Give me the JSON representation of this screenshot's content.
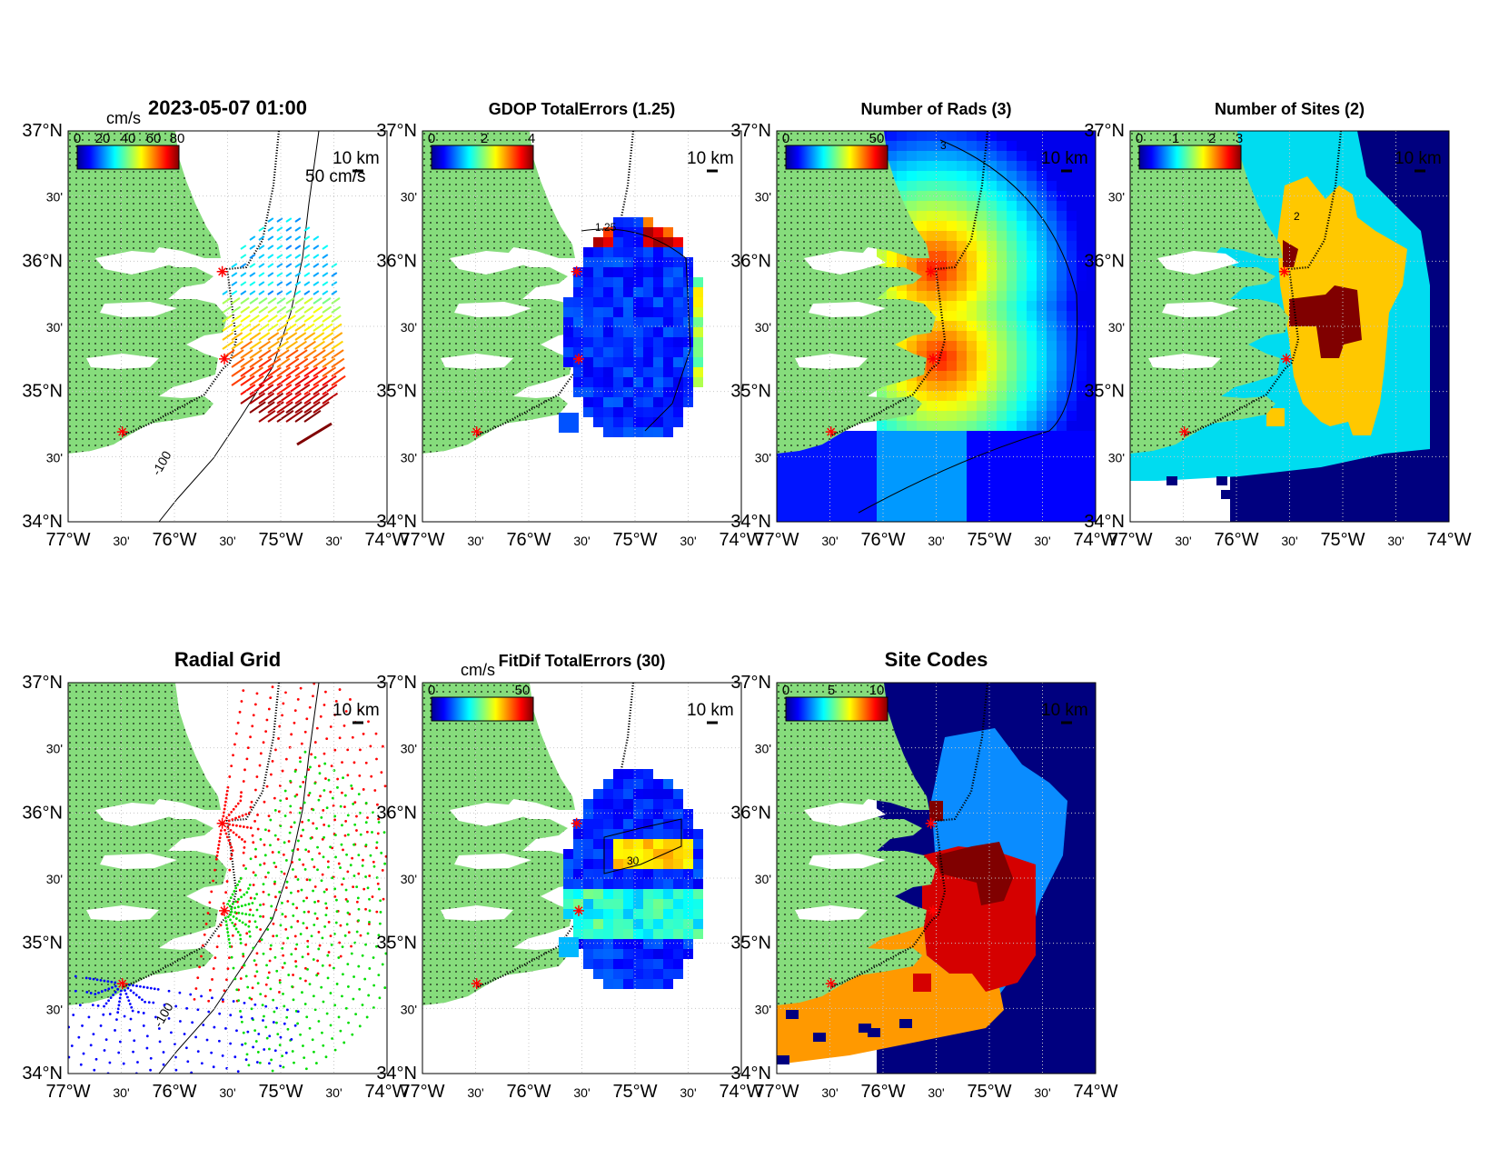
{
  "colors": {
    "land": "#86dc7c",
    "land_dots": "#000000",
    "site_marker": "#ff0000",
    "grid_dashed": "#bbbbbb",
    "navy": "#00007f",
    "blue": "#0a2be6",
    "cyan": "#00dcf0",
    "gold": "#ffc800",
    "darkred": "#800000",
    "red": "#d50000",
    "orange": "#ff9900",
    "lightblue": "#0a8cff",
    "rad_red": "#ff0000",
    "rad_green": "#00dd00",
    "rad_blue": "#0000ff"
  },
  "axes": {
    "lon_labels": [
      "77°W",
      "30'",
      "76°W",
      "30'",
      "75°W",
      "30'",
      "74°W"
    ],
    "lat_labels": [
      "37°N",
      "30'",
      "36°N",
      "30'",
      "35°N",
      "30'",
      "34°N"
    ],
    "scale_bar": "10 km",
    "isobath": "-100"
  },
  "panels": [
    {
      "id": "p1",
      "title": "2023-05-07 01:00",
      "cbar_unit": "cm/s",
      "cbar_ticks": [
        "0",
        "20",
        "40",
        "60",
        "80"
      ],
      "vector_scale": "50 cm/s"
    },
    {
      "id": "p2",
      "title": "GDOP TotalErrors (1.25)",
      "cbar_ticks": [
        "0",
        "2",
        "4"
      ],
      "contour_label": "1.25"
    },
    {
      "id": "p3",
      "title": "Number of Rads (3)",
      "cbar_ticks": [
        "0",
        "50"
      ],
      "contour_label": "3"
    },
    {
      "id": "p4",
      "title": "Number of Sites (2)",
      "cbar_ticks": [
        "0",
        "1",
        "2",
        "3"
      ],
      "contour_label": "2"
    },
    {
      "id": "p5",
      "title": "Radial Grid"
    },
    {
      "id": "p6",
      "title": "FitDif TotalErrors (30)",
      "cbar_unit": "cm/s",
      "cbar_ticks": [
        "0",
        "50"
      ],
      "contour_label": "30"
    },
    {
      "id": "p7",
      "title": "Site Codes",
      "cbar_ticks": [
        "0",
        "5",
        "10"
      ]
    }
  ],
  "chart_data": [
    {
      "type": "heatmap",
      "title": "2023-05-07 01:00",
      "units": "cm/s",
      "layer": "total current vectors",
      "lon_range": [
        -77,
        -74
      ],
      "lat_range": [
        34,
        37
      ]
    },
    {
      "type": "heatmap",
      "title": "GDOP TotalErrors (1.25)",
      "lon_range": [
        -77,
        -74
      ],
      "lat_range": [
        34,
        37
      ],
      "color_range": [
        0,
        5
      ]
    },
    {
      "type": "heatmap",
      "title": "Number of Rads (3)",
      "lon_range": [
        -77,
        -74
      ],
      "lat_range": [
        34,
        37
      ],
      "color_range": [
        0,
        60
      ]
    },
    {
      "type": "heatmap",
      "title": "Number of Sites (2)",
      "lon_range": [
        -77,
        -74
      ],
      "lat_range": [
        34,
        37
      ],
      "color_range": [
        0,
        3
      ]
    },
    {
      "type": "scatter",
      "title": "Radial Grid",
      "lon_range": [
        -77,
        -74
      ],
      "lat_range": [
        34,
        37
      ],
      "sites": [
        {
          "lon": -75.55,
          "lat": 35.92
        },
        {
          "lon": -75.53,
          "lat": 35.25
        },
        {
          "lon": -76.49,
          "lat": 34.69
        }
      ]
    },
    {
      "type": "heatmap",
      "title": "FitDif TotalErrors (30)",
      "units": "cm/s",
      "lon_range": [
        -77,
        -74
      ],
      "lat_range": [
        34,
        37
      ],
      "color_range": [
        0,
        80
      ]
    },
    {
      "type": "heatmap",
      "title": "Site Codes",
      "lon_range": [
        -77,
        -74
      ],
      "lat_range": [
        34,
        37
      ],
      "color_range": [
        0,
        12
      ]
    }
  ]
}
